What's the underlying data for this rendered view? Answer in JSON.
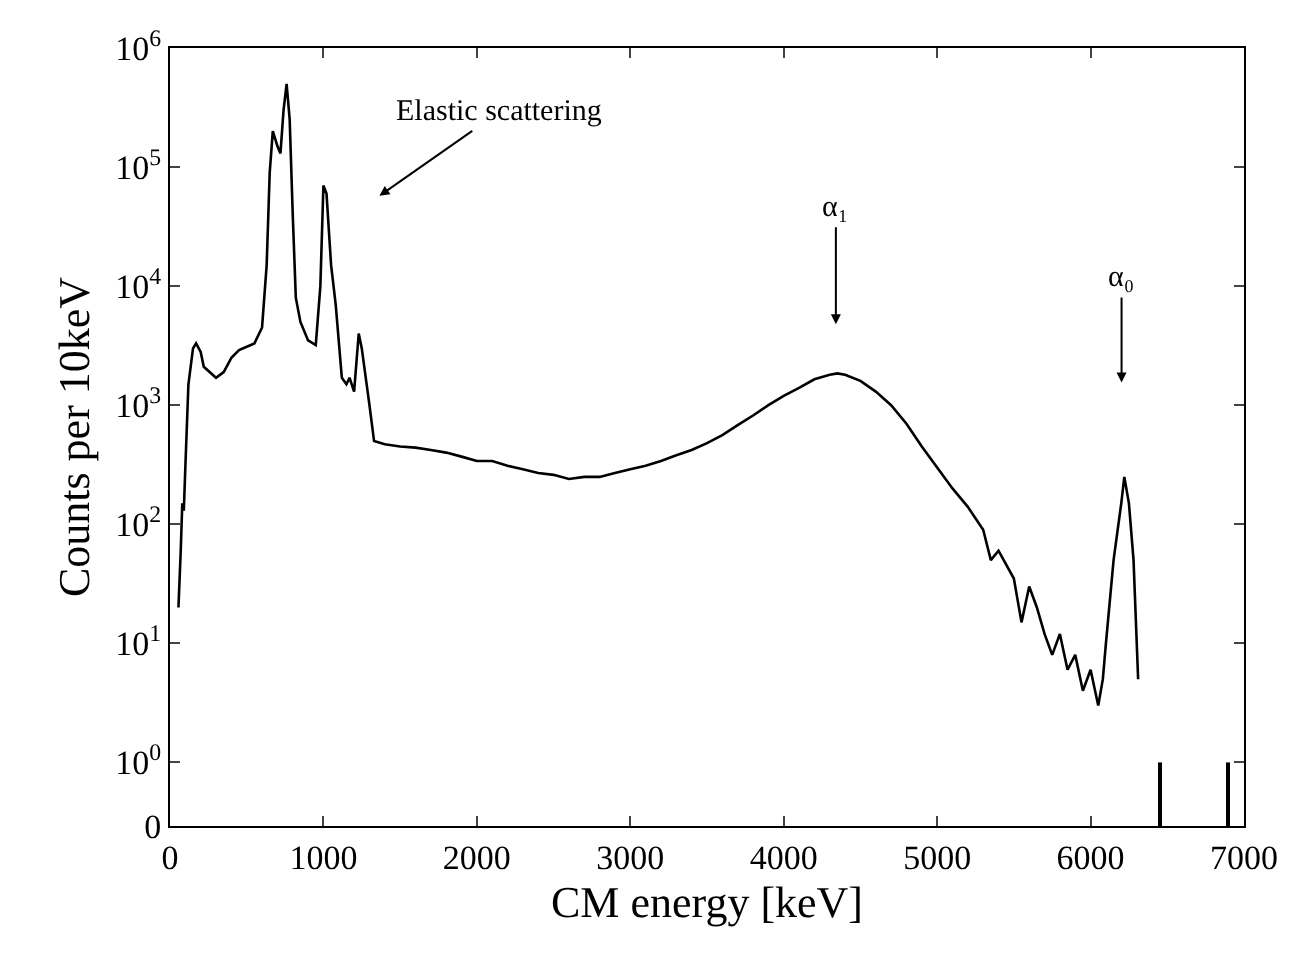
{
  "chart_data": {
    "type": "line",
    "xlabel": "CM energy [keV]",
    "ylabel": "Counts per 10keV",
    "x": [
      55,
      70,
      80,
      90,
      100,
      120,
      150,
      170,
      200,
      220,
      300,
      350,
      400,
      450,
      500,
      550,
      600,
      630,
      650,
      670,
      700,
      720,
      740,
      760,
      780,
      800,
      820,
      850,
      900,
      950,
      980,
      1000,
      1020,
      1050,
      1080,
      1120,
      1150,
      1170,
      1200,
      1230,
      1250,
      1300,
      1330,
      1400,
      1500,
      1600,
      1700,
      1800,
      1900,
      2000,
      2100,
      2200,
      2300,
      2400,
      2500,
      2600,
      2700,
      2800,
      2900,
      3000,
      3100,
      3200,
      3300,
      3400,
      3500,
      3600,
      3700,
      3800,
      3900,
      4000,
      4100,
      4200,
      4300,
      4350,
      4400,
      4500,
      4600,
      4700,
      4800,
      4900,
      5000,
      5100,
      5200,
      5300,
      5350,
      5400,
      5500,
      5550,
      5600,
      5650,
      5700,
      5750,
      5800,
      5850,
      5900,
      5950,
      6000,
      6050,
      6080,
      6100,
      6150,
      6200,
      6220,
      6250,
      6280,
      6310
    ],
    "series": [
      {
        "color": "#000000",
        "values": [
          20,
          60,
          150,
          130,
          300,
          1500,
          3000,
          3300,
          2800,
          2100,
          1700,
          1900,
          2500,
          2900,
          3100,
          3300,
          4500,
          15000,
          90000,
          200000,
          150000,
          130000,
          300000,
          500000,
          250000,
          40000,
          8000,
          5000,
          3500,
          3200,
          10000,
          70000,
          60000,
          15000,
          7000,
          1700,
          1500,
          1700,
          1300,
          4000,
          3000,
          1000,
          500,
          470,
          450,
          440,
          420,
          400,
          370,
          340,
          340,
          310,
          290,
          270,
          260,
          240,
          250,
          250,
          270,
          290,
          310,
          340,
          380,
          420,
          480,
          560,
          680,
          820,
          1000,
          1200,
          1400,
          1650,
          1800,
          1850,
          1800,
          1600,
          1300,
          1000,
          700,
          450,
          300,
          200,
          140,
          90,
          50,
          60,
          35,
          15,
          30,
          20,
          12,
          8,
          12,
          6,
          8,
          4,
          6,
          3,
          5,
          10,
          50,
          150,
          250,
          150,
          50,
          5
        ]
      },
      {
        "type": "bar",
        "color": "#000000",
        "x": [
          6455,
          6895
        ],
        "values": [
          1,
          1
        ]
      }
    ],
    "xlim": [
      0,
      7000
    ],
    "xticks": [
      0,
      1000,
      2000,
      3000,
      4000,
      5000,
      6000,
      7000
    ],
    "ylim": [
      0,
      1000000
    ],
    "yticks": [
      {
        "value": 0,
        "label": "0"
      },
      {
        "value": 1,
        "label": "10$^{0}$"
      },
      {
        "value": 10,
        "label": "10$^{1}$"
      },
      {
        "value": 100,
        "label": "10$^{2}$"
      },
      {
        "value": 1000,
        "label": "10$^{3}$"
      },
      {
        "value": 10000,
        "label": "10$^{4}$"
      },
      {
        "value": 100000,
        "label": "10$^{5}$"
      },
      {
        "value": 1000000,
        "label": "10$^{6}$"
      }
    ],
    "log": "y",
    "annotations": [
      "Elastic scattering",
      "α₁",
      "α₀"
    ]
  }
}
